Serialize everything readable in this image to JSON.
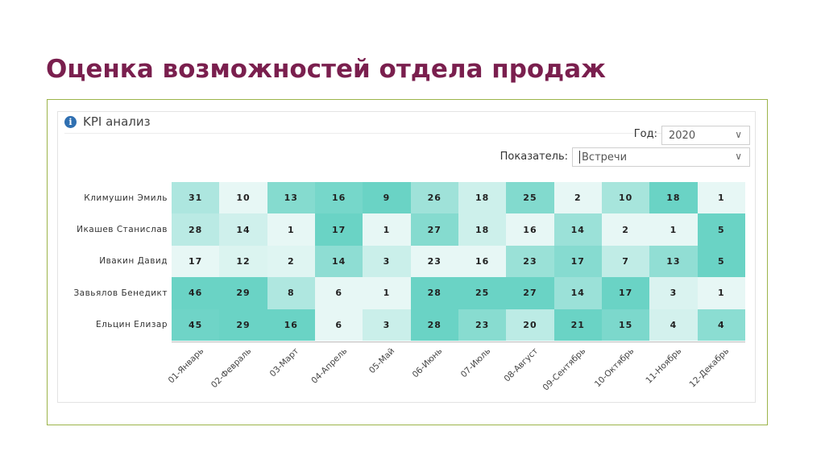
{
  "slide_title": "Оценка возможностей отдела продаж",
  "panel": {
    "title": "KPI анализ",
    "info_icon": "info-icon"
  },
  "filters": {
    "year_label": "Год:",
    "year_value": "2020",
    "metric_label": "Показатель:",
    "metric_value": "Встречи"
  },
  "colors": {
    "title": "#7a1f4e",
    "frame": "#9cb44a",
    "heat_low": "#f4fbfa",
    "heat_high": "#48c9b8"
  },
  "chart_data": {
    "type": "heatmap",
    "rows": [
      "Климушин Эмиль",
      "Икашев Станислав",
      "Ивакин Давид",
      "Завьялов Бенедикт",
      "Ельцин Елизар"
    ],
    "columns": [
      "01-Январь",
      "02-Февраль",
      "03-Март",
      "04-Апрель",
      "05-Май",
      "06-Июнь",
      "07-Июль",
      "08-Август",
      "09-Сентябрь",
      "10-Октябрь",
      "11-Ноябрь",
      "12-Декабрь"
    ],
    "values": [
      [
        31,
        10,
        13,
        16,
        9,
        26,
        18,
        25,
        2,
        10,
        18,
        1
      ],
      [
        28,
        14,
        1,
        17,
        1,
        27,
        18,
        16,
        14,
        2,
        1,
        5
      ],
      [
        17,
        12,
        2,
        14,
        3,
        23,
        16,
        23,
        17,
        7,
        13,
        5
      ],
      [
        46,
        29,
        8,
        6,
        1,
        28,
        25,
        27,
        14,
        17,
        3,
        1
      ],
      [
        45,
        29,
        16,
        6,
        3,
        28,
        23,
        20,
        21,
        15,
        4,
        4
      ]
    ],
    "color_scale": "column-normalized"
  }
}
